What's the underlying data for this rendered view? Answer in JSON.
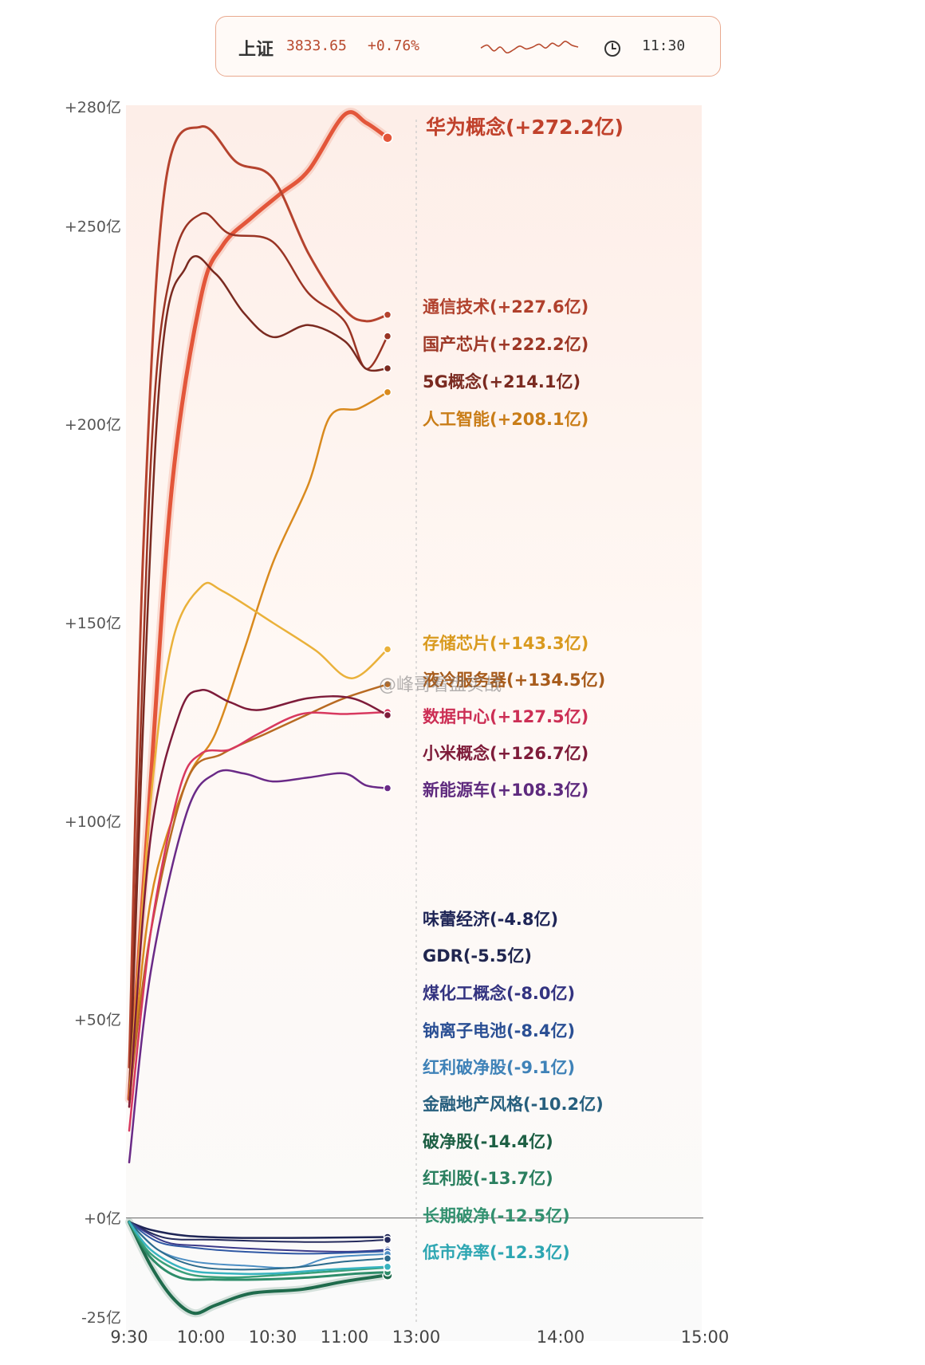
{
  "ticker": {
    "name": "上证",
    "value": "3833.65",
    "change": "+0.76%",
    "time": "11:30",
    "spark": [
      0.45,
      0.6,
      0.3,
      0.5,
      0.2,
      0.35,
      0.55,
      0.4,
      0.5,
      0.65,
      0.45,
      0.7,
      0.55,
      0.8,
      0.6,
      0.5
    ]
  },
  "watermark": "@峰哥看盘实战",
  "chart_data": {
    "type": "line",
    "x_ticks": [
      "9:30",
      "10:00",
      "10:30",
      "11:00",
      "13:00",
      "14:00",
      "15:00"
    ],
    "y_ticks": [
      "+280亿",
      "+250亿",
      "+200亿",
      "+150亿",
      "+100亿",
      "+50亿",
      "+0亿",
      "-25亿"
    ],
    "y_tick_values": [
      280,
      250,
      200,
      150,
      100,
      50,
      0,
      -25
    ],
    "ylim": [
      -25,
      280
    ],
    "current_time_index": 4,
    "series": [
      {
        "name": "华为概念",
        "label": "华为概念(+272.2亿)",
        "final": 272.2,
        "color": "#e3563a",
        "width": 5,
        "label_color": "#c0412b",
        "points": [
          [
            0,
            30
          ],
          [
            0.3,
            110
          ],
          [
            0.6,
            185
          ],
          [
            1,
            232
          ],
          [
            1.3,
            245
          ],
          [
            1.7,
            252
          ],
          [
            2.1,
            258
          ],
          [
            2.5,
            264
          ],
          [
            3,
            278
          ],
          [
            3.3,
            276
          ],
          [
            3.6,
            272.2
          ]
        ]
      },
      {
        "name": "通信技术",
        "label": "通信技术(+227.6亿)",
        "final": 227.6,
        "color": "#b5432e",
        "width": 3,
        "label_color": "#b0402c",
        "points": [
          [
            0,
            38
          ],
          [
            0.2,
            170
          ],
          [
            0.5,
            260
          ],
          [
            1,
            275
          ],
          [
            1.5,
            266
          ],
          [
            2,
            262
          ],
          [
            2.5,
            243
          ],
          [
            3,
            229
          ],
          [
            3.3,
            226
          ],
          [
            3.6,
            227.6
          ]
        ]
      },
      {
        "name": "国产芯片",
        "label": "国产芯片(+222.2亿)",
        "final": 222.2,
        "color": "#9a3424",
        "width": 2.5,
        "label_color": "#9d3726",
        "points": [
          [
            0,
            30
          ],
          [
            0.3,
            190
          ],
          [
            0.6,
            240
          ],
          [
            1,
            253
          ],
          [
            1.4,
            248
          ],
          [
            2,
            246
          ],
          [
            2.5,
            233
          ],
          [
            3,
            226
          ],
          [
            3.3,
            214
          ],
          [
            3.6,
            222.2
          ]
        ]
      },
      {
        "name": "5G概念",
        "label": "5G概念(+214.1亿)",
        "final": 214.1,
        "color": "#7a2a20",
        "width": 2.5,
        "label_color": "#7a2a20",
        "points": [
          [
            0,
            30
          ],
          [
            0.4,
            205
          ],
          [
            0.8,
            240
          ],
          [
            1.2,
            238
          ],
          [
            1.6,
            228
          ],
          [
            2,
            222
          ],
          [
            2.5,
            225
          ],
          [
            3,
            221
          ],
          [
            3.3,
            214
          ],
          [
            3.6,
            214.1
          ]
        ]
      },
      {
        "name": "人工智能",
        "label": "人工智能(+208.1亿)",
        "final": 208.1,
        "color": "#d98a1e",
        "width": 2.5,
        "label_color": "#c97d18",
        "points": [
          [
            0,
            28
          ],
          [
            0.3,
            80
          ],
          [
            0.8,
            110
          ],
          [
            1.2,
            122
          ],
          [
            1.6,
            143
          ],
          [
            2,
            165
          ],
          [
            2.5,
            185
          ],
          [
            2.8,
            202
          ],
          [
            3.2,
            204
          ],
          [
            3.6,
            208.1
          ]
        ]
      },
      {
        "name": "存储芯片",
        "label": "存储芯片(+143.3亿)",
        "final": 143.3,
        "color": "#eab13a",
        "width": 2.5,
        "label_color": "#d99a1f",
        "points": [
          [
            0,
            30
          ],
          [
            0.3,
            105
          ],
          [
            0.6,
            145
          ],
          [
            1,
            159
          ],
          [
            1.3,
            158
          ],
          [
            2,
            150
          ],
          [
            2.6,
            143
          ],
          [
            3.1,
            136
          ],
          [
            3.6,
            143.3
          ]
        ]
      },
      {
        "name": "液冷服务器",
        "label": "液冷服务器(+134.5亿)",
        "final": 134.5,
        "color": "#b86a22",
        "width": 2.5,
        "label_color": "#a85c1c",
        "points": [
          [
            0,
            30
          ],
          [
            0.3,
            72
          ],
          [
            0.8,
            110
          ],
          [
            1.3,
            117
          ],
          [
            1.9,
            122
          ],
          [
            2.5,
            127
          ],
          [
            3,
            131
          ],
          [
            3.6,
            134.5
          ]
        ]
      },
      {
        "name": "数据中心",
        "label": "数据中心(+127.5亿)",
        "final": 127.5,
        "color": "#d8395f",
        "width": 2.5,
        "label_color": "#cc2f55",
        "points": [
          [
            0,
            22
          ],
          [
            0.3,
            72
          ],
          [
            0.7,
            108
          ],
          [
            1,
            117
          ],
          [
            1.4,
            118
          ],
          [
            1.8,
            122
          ],
          [
            2.4,
            127
          ],
          [
            3,
            127
          ],
          [
            3.6,
            127.5
          ]
        ]
      },
      {
        "name": "小米概念",
        "label": "小米概念(+126.7亿)",
        "final": 126.7,
        "color": "#7e1c3a",
        "width": 2.5,
        "label_color": "#7e1c3a",
        "points": [
          [
            0,
            28
          ],
          [
            0.3,
            96
          ],
          [
            0.7,
            127
          ],
          [
            1,
            133
          ],
          [
            1.4,
            130
          ],
          [
            1.8,
            128
          ],
          [
            2.5,
            131
          ],
          [
            3.1,
            131
          ],
          [
            3.6,
            126.7
          ]
        ]
      },
      {
        "name": "新能源车",
        "label": "新能源车(+108.3亿)",
        "final": 108.3,
        "color": "#6a2a87",
        "width": 2.5,
        "label_color": "#5e2a7e",
        "points": [
          [
            0,
            14
          ],
          [
            0.3,
            62
          ],
          [
            0.8,
            102
          ],
          [
            1.2,
            112
          ],
          [
            1.6,
            112
          ],
          [
            2,
            110
          ],
          [
            2.5,
            111
          ],
          [
            3,
            112
          ],
          [
            3.3,
            109
          ],
          [
            3.6,
            108.3
          ]
        ]
      },
      {
        "name": "味蕾经济",
        "label": "味蕾经济(-4.8亿)",
        "final": -4.8,
        "color": "#1e2556",
        "width": 2.5,
        "label_color": "#1e2556",
        "points": [
          [
            0,
            -1
          ],
          [
            0.3,
            -3
          ],
          [
            0.8,
            -4.5
          ],
          [
            1.5,
            -5
          ],
          [
            2.5,
            -5
          ],
          [
            3.6,
            -4.8
          ]
        ]
      },
      {
        "name": "GDR",
        "label": "GDR(-5.5亿)",
        "final": -5.5,
        "color": "#242a5c",
        "width": 2,
        "label_color": "#20264f",
        "points": [
          [
            0,
            -1
          ],
          [
            0.5,
            -5
          ],
          [
            1.2,
            -5.5
          ],
          [
            2.2,
            -6
          ],
          [
            3,
            -6
          ],
          [
            3.6,
            -5.5
          ]
        ]
      },
      {
        "name": "煤化工概念",
        "label": "煤化工概念(-8.0亿)",
        "final": -8.0,
        "color": "#3b3a8a",
        "width": 2,
        "label_color": "#333380",
        "points": [
          [
            0,
            -1
          ],
          [
            0.5,
            -6
          ],
          [
            1,
            -7
          ],
          [
            2,
            -8
          ],
          [
            3,
            -8.5
          ],
          [
            3.6,
            -8.0
          ]
        ]
      },
      {
        "name": "钠离子电池",
        "label": "钠离子电池(-8.4亿)",
        "final": -8.4,
        "color": "#2f58a4",
        "width": 2,
        "label_color": "#2a4f94",
        "points": [
          [
            0,
            -1
          ],
          [
            0.4,
            -6
          ],
          [
            0.9,
            -7.5
          ],
          [
            1.6,
            -8.5
          ],
          [
            2.5,
            -9
          ],
          [
            3.6,
            -8.4
          ]
        ]
      },
      {
        "name": "红利破净股",
        "label": "红利破净股(-9.1亿)",
        "final": -9.1,
        "color": "#4d8fc4",
        "width": 2,
        "label_color": "#3f82b8",
        "points": [
          [
            0,
            -1
          ],
          [
            0.4,
            -8
          ],
          [
            0.9,
            -11
          ],
          [
            1.6,
            -12
          ],
          [
            2.3,
            -12.5
          ],
          [
            2.8,
            -10
          ],
          [
            3.6,
            -9.1
          ]
        ]
      },
      {
        "name": "金融地产风格",
        "label": "金融地产风格(-10.2亿)",
        "final": -10.2,
        "color": "#2c6b8c",
        "width": 2,
        "label_color": "#275f7e",
        "points": [
          [
            0,
            -1
          ],
          [
            0.4,
            -8
          ],
          [
            0.9,
            -12
          ],
          [
            1.5,
            -13
          ],
          [
            2.3,
            -12.5
          ],
          [
            3,
            -11
          ],
          [
            3.6,
            -10.2
          ]
        ]
      },
      {
        "name": "破净股",
        "label": "破净股(-14.4亿)",
        "final": -14.4,
        "color": "#1f6b4c",
        "width": 4,
        "label_color": "#1d5f44",
        "points": [
          [
            0,
            -1
          ],
          [
            0.3,
            -12
          ],
          [
            0.6,
            -20
          ],
          [
            0.9,
            -24
          ],
          [
            1.2,
            -22
          ],
          [
            1.7,
            -19
          ],
          [
            2.4,
            -18
          ],
          [
            3,
            -16
          ],
          [
            3.6,
            -14.4
          ]
        ]
      },
      {
        "name": "红利股",
        "label": "红利股(-13.7亿)",
        "final": -13.7,
        "color": "#2e8d6a",
        "width": 3,
        "label_color": "#2a7f5f",
        "points": [
          [
            0,
            -1
          ],
          [
            0.3,
            -10
          ],
          [
            0.7,
            -15
          ],
          [
            1.2,
            -15.5
          ],
          [
            1.8,
            -15.5
          ],
          [
            2.5,
            -15
          ],
          [
            3.2,
            -14
          ],
          [
            3.6,
            -13.7
          ]
        ]
      },
      {
        "name": "长期破净",
        "label": "长期破净(-12.5亿)",
        "final": -12.5,
        "color": "#3aa07a",
        "width": 2.5,
        "label_color": "#339170",
        "points": [
          [
            0,
            -1
          ],
          [
            0.3,
            -9
          ],
          [
            0.8,
            -14
          ],
          [
            1.4,
            -15
          ],
          [
            2,
            -14.5
          ],
          [
            2.8,
            -13.5
          ],
          [
            3.6,
            -12.5
          ]
        ]
      },
      {
        "name": "低市净率",
        "label": "低市净率(-12.3亿)",
        "final": -12.3,
        "color": "#38b3bf",
        "width": 2.5,
        "label_color": "#2da6b2",
        "points": [
          [
            0,
            -1
          ],
          [
            0.3,
            -8
          ],
          [
            0.8,
            -13
          ],
          [
            1.4,
            -14
          ],
          [
            2,
            -14
          ],
          [
            2.8,
            -13
          ],
          [
            3.6,
            -12.3
          ]
        ]
      }
    ]
  }
}
